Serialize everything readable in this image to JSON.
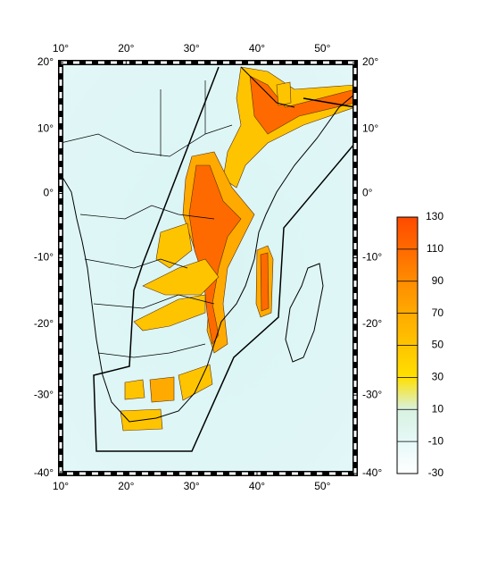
{
  "map": {
    "projection": "mercator",
    "lonlim": [
      10,
      55
    ],
    "latlim": [
      -40,
      20
    ],
    "lon_ticks": [
      {
        "value": 10,
        "label": "10°"
      },
      {
        "value": 20,
        "label": "20°"
      },
      {
        "value": 30,
        "label": "30°"
      },
      {
        "value": 40,
        "label": "40°"
      },
      {
        "value": 50,
        "label": "50°"
      }
    ],
    "lat_ticks": [
      {
        "value": 20,
        "label": "20°"
      },
      {
        "value": 10,
        "label": "10°"
      },
      {
        "value": 0,
        "label": "0°"
      },
      {
        "value": -10,
        "label": "-10°"
      },
      {
        "value": -20,
        "label": "-20°"
      },
      {
        "value": -30,
        "label": "-30°"
      },
      {
        "value": -40,
        "label": "-40°"
      }
    ],
    "colorbar": {
      "ticks": [
        130,
        110,
        90,
        70,
        50,
        30,
        10,
        -10,
        -30
      ],
      "colors": [
        "#ff4a00",
        "#ff6a00",
        "#ff8c00",
        "#ffaa00",
        "#ffc400",
        "#ffe000",
        "#d8f2e0",
        "#e6f8f8",
        "#ffffff"
      ]
    }
  }
}
